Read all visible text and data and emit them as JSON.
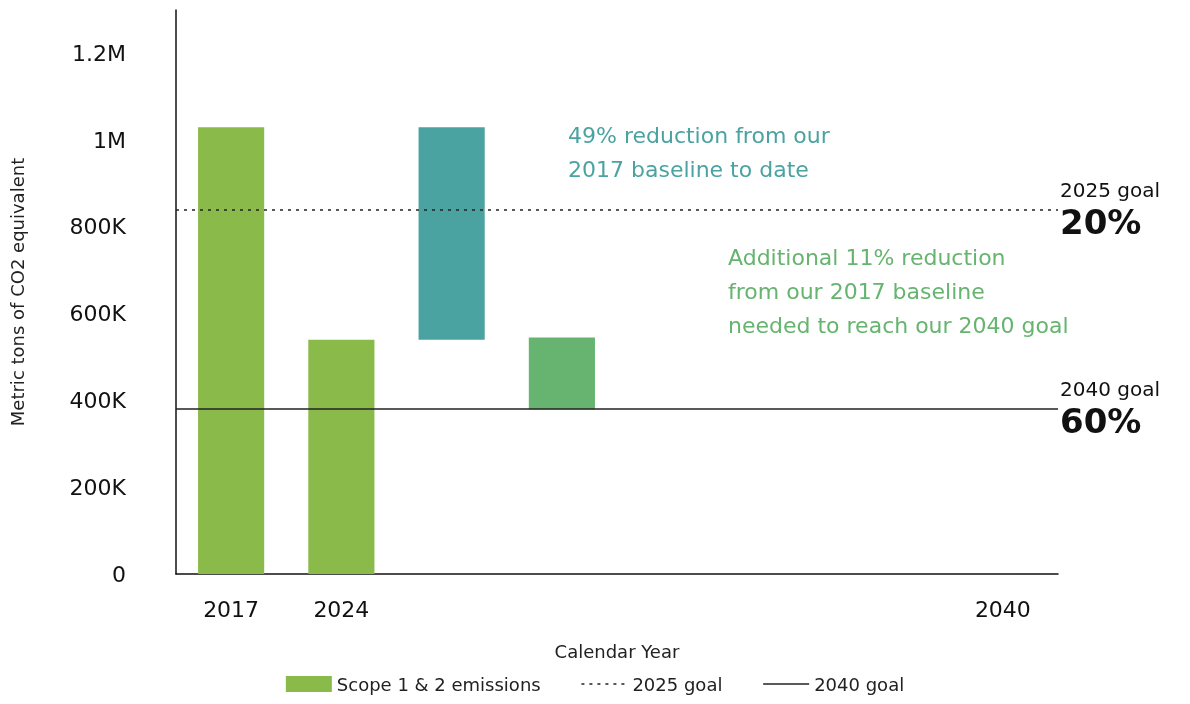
{
  "chart_data": {
    "type": "bar",
    "xlabel": "Calendar Year",
    "ylabel": "Metric tons of CO2 equivalent",
    "categories": [
      "2017",
      "2024",
      null,
      null,
      null,
      null,
      null,
      "2040"
    ],
    "series": [
      {
        "name": "Scope 1 & 2 emissions",
        "color": "#8aba4a",
        "values": [
          1030000,
          540000,
          null,
          null,
          null,
          null,
          null,
          null
        ]
      },
      {
        "colors": [
          null,
          null,
          "#4aa3a0",
          "#66b46f",
          null,
          null,
          null,
          null
        ],
        "base": [
          null,
          null,
          540000,
          380000,
          null,
          null,
          null,
          null
        ],
        "values": [
          null,
          null,
          490000,
          165000,
          null,
          null,
          null,
          null
        ]
      }
    ],
    "ylim": [
      0,
      1300000
    ],
    "yticks": [
      0,
      {
        "value": 200000,
        "label": "200K"
      },
      {
        "value": 400000,
        "label": "400K"
      },
      {
        "value": 600000,
        "label": "600K"
      },
      {
        "value": 800000,
        "label": "800K"
      },
      {
        "value": 1000000,
        "label": "1M"
      },
      {
        "value": 1200000,
        "label": "1.2M"
      }
    ],
    "ref_lines": [
      {
        "axis": "y",
        "value": 840000,
        "label": "2025 goal",
        "line_style": "dashed",
        "color": "#222222"
      },
      {
        "axis": "y",
        "value": 380000,
        "label": "2040 goal",
        "line_style": "solid",
        "color": "#222222"
      }
    ],
    "annotations": [
      "20%",
      "60%",
      "49% reduction from our\n2017 baseline to date",
      "Additional 11% reduction\nfrom our 2017 baseline\nneeded to reach our 2040 goal"
    ],
    "grid": false,
    "legend": "bottom"
  }
}
